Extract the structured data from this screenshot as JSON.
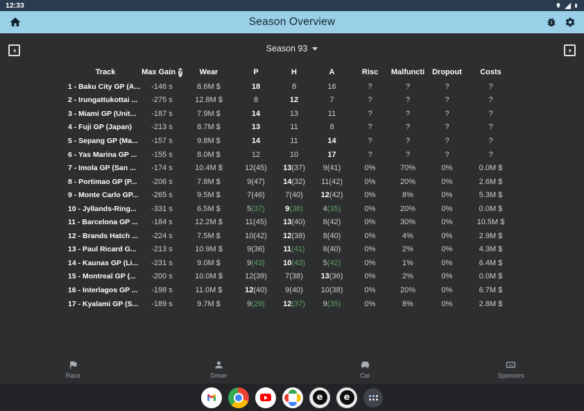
{
  "status_bar": {
    "time": "12:33"
  },
  "app_bar": {
    "title": "Season Overview"
  },
  "season_selector": {
    "label": "Season 93"
  },
  "colors": {
    "green": "#5fa463",
    "appbar": "#9bd0e9",
    "statusbar": "#2a3b4f"
  },
  "table": {
    "headers": [
      {
        "key": "track",
        "label": "Track"
      },
      {
        "key": "max-gain",
        "label": "Max Gain",
        "help": true
      },
      {
        "key": "wear",
        "label": "Wear"
      },
      {
        "key": "p",
        "label": "P"
      },
      {
        "key": "h",
        "label": "H"
      },
      {
        "key": "a",
        "label": "A"
      },
      {
        "key": "risc",
        "label": "Risc"
      },
      {
        "key": "malfunction",
        "label": "Malfuncti"
      },
      {
        "key": "dropout",
        "label": "Dropout"
      },
      {
        "key": "costs",
        "label": "Costs"
      }
    ],
    "rows": [
      {
        "track": "1 - Baku City GP (A...",
        "max_gain": "-146 s",
        "wear": "8.6M $",
        "p": {
          "v": "18",
          "b": true
        },
        "h": {
          "v": "8"
        },
        "a": {
          "v": "16"
        },
        "risc": "?",
        "malfunction": "?",
        "dropout": "?",
        "costs": "?"
      },
      {
        "track": "2 - Irungattukottai ...",
        "max_gain": "-275 s",
        "wear": "12.8M $",
        "p": {
          "v": "8"
        },
        "h": {
          "v": "12",
          "b": true
        },
        "a": {
          "v": "7"
        },
        "risc": "?",
        "malfunction": "?",
        "dropout": "?",
        "costs": "?"
      },
      {
        "track": "3 - Miami GP (Unit...",
        "max_gain": "-187 s",
        "wear": "7.9M $",
        "p": {
          "v": "14",
          "b": true
        },
        "h": {
          "v": "13"
        },
        "a": {
          "v": "11"
        },
        "risc": "?",
        "malfunction": "?",
        "dropout": "?",
        "costs": "?"
      },
      {
        "track": "4 - Fuji GP (Japan)",
        "max_gain": "-213 s",
        "wear": "8.7M $",
        "p": {
          "v": "13",
          "b": true
        },
        "h": {
          "v": "11"
        },
        "a": {
          "v": "8"
        },
        "risc": "?",
        "malfunction": "?",
        "dropout": "?",
        "costs": "?"
      },
      {
        "track": "5 - Sepang GP (Ma...",
        "max_gain": "-157 s",
        "wear": "9.8M $",
        "p": {
          "v": "14",
          "b": true
        },
        "h": {
          "v": "11"
        },
        "a": {
          "v": "14",
          "b": true
        },
        "risc": "?",
        "malfunction": "?",
        "dropout": "?",
        "costs": "?"
      },
      {
        "track": "6 - Yas Marina GP ...",
        "max_gain": "-155 s",
        "wear": "8.0M $",
        "p": {
          "v": "12"
        },
        "h": {
          "v": "10"
        },
        "a": {
          "v": "17",
          "b": true
        },
        "risc": "?",
        "malfunction": "?",
        "dropout": "?",
        "costs": "?"
      },
      {
        "track": "7 - Imola GP (San ...",
        "max_gain": "-174 s",
        "wear": "10.4M $",
        "p": {
          "v": "12",
          "s": "45"
        },
        "h": {
          "v": "13",
          "s": "37",
          "b": true
        },
        "a": {
          "v": "9",
          "s": "41"
        },
        "risc": "0%",
        "malfunction": "70%",
        "dropout": "0%",
        "costs": "0.0M $"
      },
      {
        "track": "8 - Portimao GP (P...",
        "max_gain": "-206 s",
        "wear": "7.8M $",
        "p": {
          "v": "9",
          "s": "47"
        },
        "h": {
          "v": "14",
          "s": "32",
          "b": true
        },
        "a": {
          "v": "11",
          "s": "42"
        },
        "risc": "0%",
        "malfunction": "20%",
        "dropout": "0%",
        "costs": "2.6M $"
      },
      {
        "track": "9 - Monte Carlo GP...",
        "max_gain": "-265 s",
        "wear": "9.5M $",
        "p": {
          "v": "7",
          "s": "46"
        },
        "h": {
          "v": "7",
          "s": "40"
        },
        "a": {
          "v": "12",
          "s": "42",
          "b": true
        },
        "risc": "0%",
        "malfunction": "8%",
        "dropout": "0%",
        "costs": "5.3M $"
      },
      {
        "track": "10 - Jyllands-Ring...",
        "max_gain": "-331 s",
        "wear": "6.5M $",
        "p": {
          "v": "5",
          "s": "37",
          "g": true
        },
        "h": {
          "v": "9",
          "s": "38",
          "b": true,
          "g": true
        },
        "a": {
          "v": "4",
          "s": "35",
          "g": true
        },
        "risc": "0%",
        "malfunction": "20%",
        "dropout": "0%",
        "costs": "0.0M $"
      },
      {
        "track": "11 - Barcelona GP ...",
        "max_gain": "-184 s",
        "wear": "12.2M $",
        "p": {
          "v": "11",
          "s": "45"
        },
        "h": {
          "v": "13",
          "s": "40",
          "b": true
        },
        "a": {
          "v": "8",
          "s": "42"
        },
        "risc": "0%",
        "malfunction": "30%",
        "dropout": "0%",
        "costs": "10.5M $"
      },
      {
        "track": "12 - Brands Hatch ...",
        "max_gain": "-224 s",
        "wear": "7.5M $",
        "p": {
          "v": "10",
          "s": "42"
        },
        "h": {
          "v": "12",
          "s": "38",
          "b": true
        },
        "a": {
          "v": "8",
          "s": "40"
        },
        "risc": "0%",
        "malfunction": "4%",
        "dropout": "0%",
        "costs": "2.9M $"
      },
      {
        "track": "13 - Paul Ricard G...",
        "max_gain": "-213 s",
        "wear": "10.9M $",
        "p": {
          "v": "9",
          "s": "36"
        },
        "h": {
          "v": "11",
          "s": "41",
          "b": true,
          "g": true
        },
        "a": {
          "v": "8",
          "s": "40"
        },
        "risc": "0%",
        "malfunction": "2%",
        "dropout": "0%",
        "costs": "4.3M $"
      },
      {
        "track": "14 - Kaunas GP (Li...",
        "max_gain": "-231 s",
        "wear": "9.0M $",
        "p": {
          "v": "9",
          "s": "43",
          "g": true
        },
        "h": {
          "v": "10",
          "s": "43",
          "b": true,
          "g": true
        },
        "a": {
          "v": "5",
          "s": "42",
          "g": true
        },
        "risc": "0%",
        "malfunction": "1%",
        "dropout": "0%",
        "costs": "6.4M $"
      },
      {
        "track": "15 - Montreal GP (...",
        "max_gain": "-200 s",
        "wear": "10.0M $",
        "p": {
          "v": "12",
          "s": "39"
        },
        "h": {
          "v": "7",
          "s": "38"
        },
        "a": {
          "v": "13",
          "s": "36",
          "b": true
        },
        "risc": "0%",
        "malfunction": "2%",
        "dropout": "0%",
        "costs": "0.0M $"
      },
      {
        "track": "16 - Interlagos GP ...",
        "max_gain": "-198 s",
        "wear": "11.0M $",
        "p": {
          "v": "12",
          "s": "40",
          "b": true
        },
        "h": {
          "v": "9",
          "s": "40"
        },
        "a": {
          "v": "10",
          "s": "38"
        },
        "risc": "0%",
        "malfunction": "20%",
        "dropout": "0%",
        "costs": "6.7M $"
      },
      {
        "track": "17 - Kyalami GP (S...",
        "max_gain": "-189 s",
        "wear": "9.7M $",
        "p": {
          "v": "9",
          "s": "29",
          "g": true
        },
        "h": {
          "v": "12",
          "s": "37",
          "b": true,
          "g": true
        },
        "a": {
          "v": "9",
          "s": "35",
          "g": true
        },
        "risc": "0%",
        "malfunction": "8%",
        "dropout": "0%",
        "costs": "2.8M $"
      }
    ]
  },
  "bottom_nav": {
    "items": [
      {
        "id": "race",
        "label": "Race",
        "icon": "flag-icon"
      },
      {
        "id": "driver",
        "label": "Driver",
        "icon": "person-icon"
      },
      {
        "id": "car",
        "label": "Car",
        "icon": "car-icon"
      },
      {
        "id": "sponsors",
        "label": "Sponsors",
        "icon": "banknote-icon"
      }
    ]
  },
  "dock": {
    "apps": [
      {
        "id": "gmail",
        "name": "Gmail"
      },
      {
        "id": "chrome",
        "name": "Chrome"
      },
      {
        "id": "youtube",
        "name": "YouTube"
      },
      {
        "id": "photos",
        "name": "Google Photos"
      },
      {
        "id": "game",
        "name": "Racing Manager"
      },
      {
        "id": "game",
        "name": "Racing Manager"
      },
      {
        "id": "app-drawer",
        "name": "App Drawer"
      }
    ]
  }
}
